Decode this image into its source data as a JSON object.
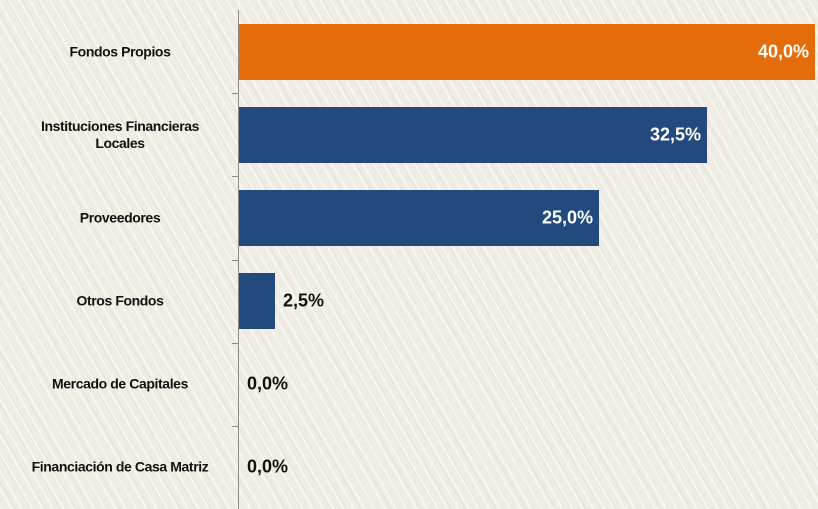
{
  "chart_data": {
    "type": "bar",
    "orientation": "horizontal",
    "categories": [
      "Fondos Propios",
      "Instituciones Financieras Locales",
      "Proveedores",
      "Otros Fondos",
      "Mercado de Capitales",
      "Financiación de Casa Matriz"
    ],
    "values": [
      40,
      32.5,
      25,
      2.5,
      0,
      0
    ],
    "value_labels": [
      "40,0%",
      "32,5%",
      "25,0%",
      "2,5%",
      "0,0%",
      "0,0%"
    ],
    "colors": [
      "#e46c0a",
      "#234a7e",
      "#234a7e",
      "#234a7e",
      "#234a7e",
      "#234a7e"
    ],
    "xlim": [
      0,
      40
    ]
  }
}
